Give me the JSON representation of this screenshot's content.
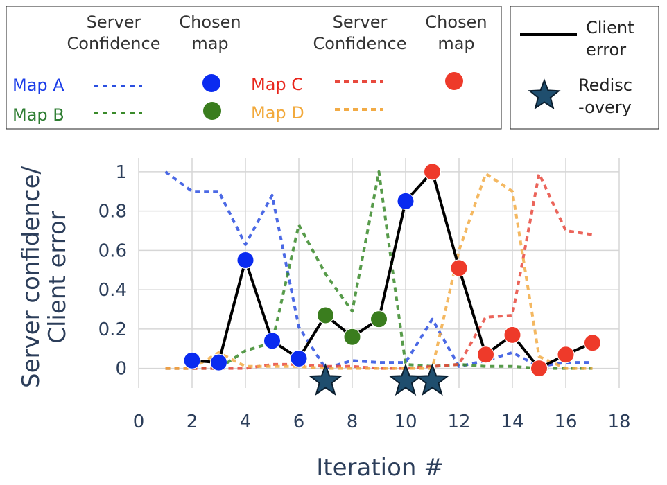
{
  "legend": {
    "col_server_confidence": [
      "Server",
      "Confidence"
    ],
    "col_chosen_map": [
      "Chosen",
      "map"
    ],
    "maps": [
      {
        "label": "Map A",
        "color": "#1a3ce8",
        "line_color": "#2b4fe0",
        "marker_color": "#0a2bf0"
      },
      {
        "label": "Map B",
        "color": "#2e7d32",
        "line_color": "#3a8a2a",
        "marker_color": "#3a7d1e"
      },
      {
        "label": "Map C",
        "color": "#e8251b",
        "line_color": "#e8493d",
        "marker_color": "#ee3a2a"
      },
      {
        "label": "Map D",
        "color": "#f2a93b",
        "line_color": "#f2ab45",
        "marker_color": "#f2ab45"
      }
    ],
    "client_error": [
      "Client",
      "error"
    ],
    "rediscovery": [
      "Redisc",
      "-overy"
    ]
  },
  "chart_data": {
    "type": "line",
    "xlabel": "Iteration #",
    "ylabel": [
      "Server confidence/",
      "Client error"
    ],
    "xlim": [
      0,
      18
    ],
    "ylim": [
      -0.1,
      1.07
    ],
    "x_ticks": [
      0,
      2,
      4,
      6,
      8,
      10,
      12,
      14,
      16,
      18
    ],
    "y_ticks": [
      0,
      0.2,
      0.4,
      0.6,
      0.8,
      1
    ],
    "y_tick_labels": [
      "0",
      "0.2",
      "0.4",
      "0.6",
      "0.8",
      "1"
    ],
    "x": [
      1,
      2,
      3,
      4,
      5,
      6,
      7,
      8,
      9,
      10,
      11,
      12,
      13,
      14,
      15,
      16,
      17
    ],
    "series": [
      {
        "name": "Map A",
        "kind": "server_confidence",
        "x": [
          1,
          2,
          3,
          4,
          5,
          6,
          7,
          8,
          9,
          10,
          11,
          12,
          13,
          14,
          15,
          16,
          17
        ],
        "values": [
          1.0,
          0.9,
          0.9,
          0.63,
          0.88,
          0.21,
          0.0,
          0.04,
          0.03,
          0.03,
          0.25,
          0.01,
          0.04,
          0.08,
          0.01,
          0.03,
          0.03
        ]
      },
      {
        "name": "Map B",
        "kind": "server_confidence",
        "x": [
          1,
          2,
          3,
          4,
          5,
          6,
          7,
          8,
          9,
          10,
          11,
          12,
          13,
          14,
          15,
          16,
          17
        ],
        "values": [
          0.0,
          0.0,
          0.0,
          0.09,
          0.13,
          0.73,
          0.48,
          0.29,
          1.0,
          0.02,
          0.01,
          0.02,
          0.01,
          0.01,
          0.0,
          0.0,
          0.0
        ]
      },
      {
        "name": "Map C",
        "kind": "server_confidence",
        "x": [
          1,
          2,
          3,
          4,
          5,
          6,
          7,
          8,
          9,
          10,
          11,
          12,
          13,
          14,
          15,
          16,
          17
        ],
        "values": [
          0.0,
          0.0,
          0.0,
          0.0,
          0.02,
          0.02,
          0.01,
          0.01,
          0.0,
          0.0,
          0.01,
          0.02,
          0.26,
          0.27,
          0.99,
          0.7,
          0.68
        ]
      },
      {
        "name": "Map D",
        "kind": "server_confidence",
        "x": [
          1,
          2,
          3,
          4,
          5,
          6,
          7,
          8,
          9,
          10,
          11,
          12,
          13,
          14,
          15,
          16,
          17
        ],
        "values": [
          0.0,
          0.0,
          0.08,
          0.01,
          0.01,
          0.01,
          0.0,
          0.0,
          0.0,
          0.0,
          0.0,
          0.6,
          0.99,
          0.9,
          0.06,
          0.0,
          0.0
        ]
      },
      {
        "name": "Client error",
        "kind": "client_error",
        "x": [
          2,
          3,
          4,
          5,
          6,
          7,
          8,
          9,
          10,
          11,
          12,
          13,
          14,
          15,
          16,
          17
        ],
        "values": [
          0.04,
          0.03,
          0.55,
          0.14,
          0.05,
          0.27,
          0.16,
          0.25,
          0.85,
          1.0,
          0.51,
          0.07,
          0.17,
          0.0,
          0.07,
          0.13
        ],
        "chosen_map": [
          "Map A",
          "Map A",
          "Map A",
          "Map A",
          "Map A",
          "Map B",
          "Map B",
          "Map B",
          "Map A",
          "Map C",
          "Map C",
          "Map C",
          "Map C",
          "Map C",
          "Map C",
          "Map C"
        ]
      }
    ],
    "rediscovery_x": [
      7,
      10,
      11
    ],
    "rediscovery_y": -0.065
  }
}
